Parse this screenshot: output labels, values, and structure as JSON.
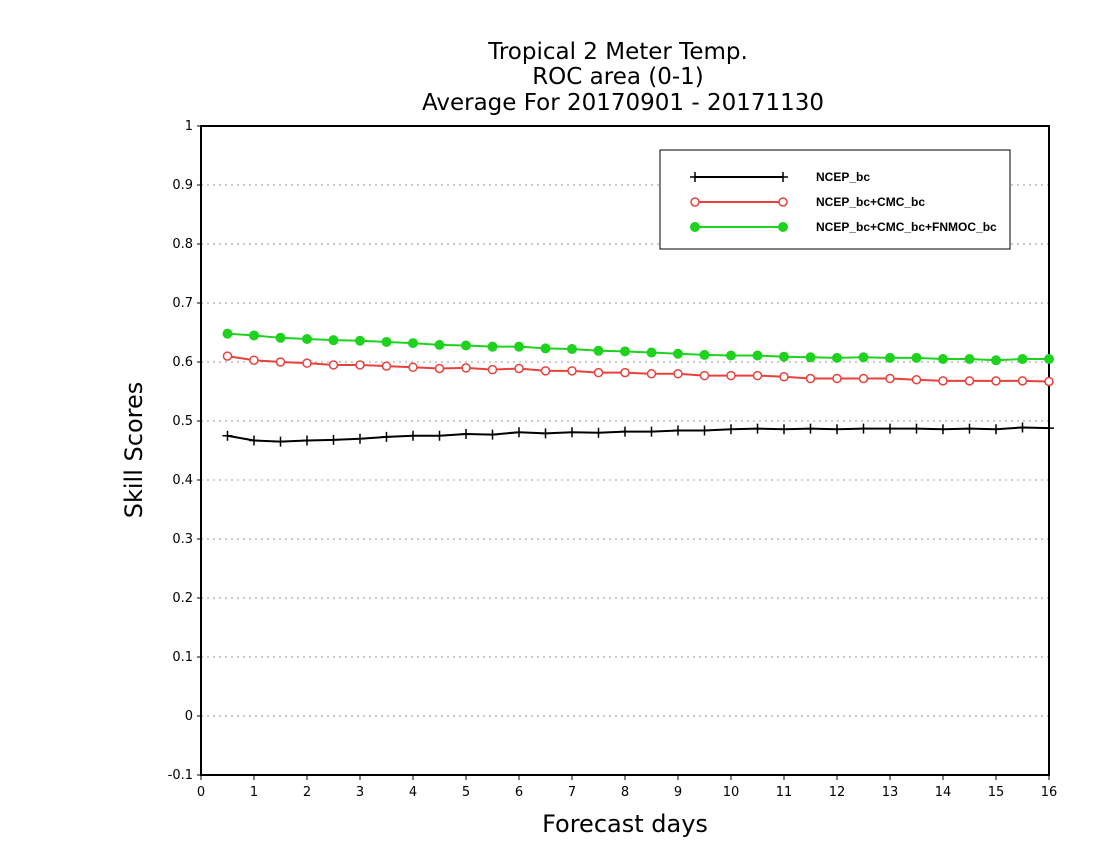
{
  "chart_data": {
    "type": "line",
    "title": [
      "Tropical 2 Meter Temp.",
      "ROC area (0-1)",
      "Average For 20170901 - 20171130"
    ],
    "xlabel": "Forecast days",
    "ylabel": "Skill Scores",
    "xlim": [
      0,
      16
    ],
    "ylim": [
      -0.1,
      1
    ],
    "x_ticks": [
      "0",
      "1",
      "2",
      "3",
      "4",
      "5",
      "6",
      "7",
      "8",
      "9",
      "10",
      "11",
      "12",
      "13",
      "14",
      "15",
      "16"
    ],
    "y_ticks": [
      "1",
      "0.9",
      "0.8",
      "0.7",
      "0.6",
      "0.5",
      "0.4",
      "0.3",
      "0.2",
      "0.1",
      "0",
      "-0.1"
    ],
    "grid": true,
    "legend_position": "top-right",
    "x": [
      0.5,
      1,
      1.5,
      2,
      2.5,
      3,
      3.5,
      4,
      4.5,
      5,
      5.5,
      6,
      6.5,
      7,
      7.5,
      8,
      8.5,
      9,
      9.5,
      10,
      10.5,
      11,
      11.5,
      12,
      12.5,
      13,
      13.5,
      14,
      14.5,
      15,
      15.5,
      16
    ],
    "series": [
      {
        "name": "NCEP_bc",
        "color": "#000000",
        "marker": "plus",
        "values": [
          0.475,
          0.467,
          0.465,
          0.467,
          0.468,
          0.47,
          0.473,
          0.475,
          0.475,
          0.478,
          0.477,
          0.481,
          0.479,
          0.481,
          0.48,
          0.482,
          0.482,
          0.484,
          0.484,
          0.486,
          0.487,
          0.486,
          0.487,
          0.486,
          0.487,
          0.487,
          0.487,
          0.486,
          0.487,
          0.486,
          0.489,
          0.488
        ]
      },
      {
        "name": "NCEP_bc+CMC_bc",
        "color": "#e8413c",
        "marker": "open-circle",
        "values": [
          0.61,
          0.603,
          0.6,
          0.598,
          0.595,
          0.595,
          0.593,
          0.591,
          0.589,
          0.59,
          0.587,
          0.589,
          0.585,
          0.585,
          0.582,
          0.582,
          0.58,
          0.58,
          0.577,
          0.577,
          0.577,
          0.575,
          0.572,
          0.572,
          0.572,
          0.572,
          0.57,
          0.568,
          0.568,
          0.568,
          0.568,
          0.567
        ]
      },
      {
        "name": "NCEP_bc+CMC_bc+FNMOC_bc",
        "color": "#1ed21e",
        "marker": "filled-circle",
        "values": [
          0.648,
          0.645,
          0.641,
          0.639,
          0.637,
          0.636,
          0.634,
          0.632,
          0.629,
          0.628,
          0.626,
          0.626,
          0.623,
          0.622,
          0.619,
          0.618,
          0.616,
          0.614,
          0.612,
          0.611,
          0.611,
          0.609,
          0.608,
          0.607,
          0.608,
          0.607,
          0.607,
          0.605,
          0.605,
          0.603,
          0.605,
          0.605
        ]
      }
    ]
  }
}
